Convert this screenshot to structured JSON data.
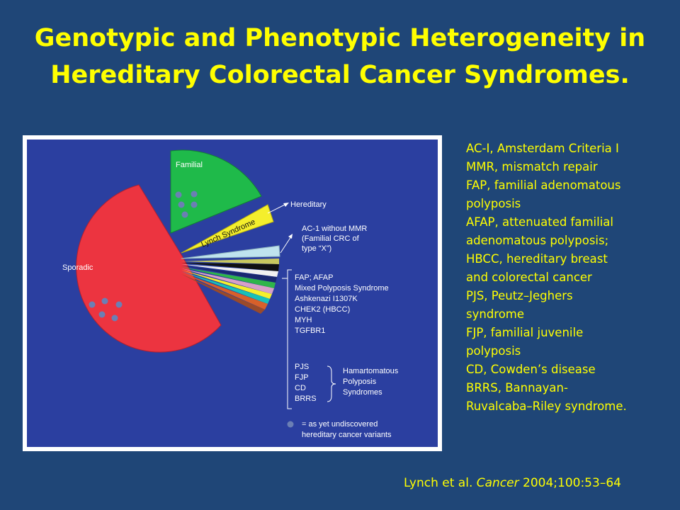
{
  "title": {
    "line1": "Genotypic and Phenotypic Heterogeneity in",
    "line2": "Hereditary Colorectal Cancer Syndromes."
  },
  "figure": {
    "slices": {
      "sporadic": "Sporadic",
      "familial": "Familial",
      "lynch": "Lynch Syndrome"
    },
    "labels": {
      "hereditary": "Hereditary",
      "ac1_line1": "AC-1 without MMR",
      "ac1_line2": "(Familial CRC of",
      "ac1_line3": "type “X”)",
      "genes": [
        "FAP; AFAP",
        "Mixed Polyposis Syndrome",
        "Ashkenazi I1307K",
        "CHEK2 (HBCC)",
        "MYH",
        "TGFBR1"
      ],
      "hamartomatous_abbrevs": [
        "PJS",
        "FJP",
        "CD",
        "BRRS"
      ],
      "hamartomatous_group": [
        "Hamartomatous",
        "Polyposis",
        "Syndromes"
      ],
      "legend_line1": "= as yet undiscovered",
      "legend_line2": "hereditary cancer variants"
    },
    "colors": {
      "background": "#2b3fa0",
      "sporadic": "#ec3440",
      "familial": "#1fba4a",
      "lynch": "#f4ef2c",
      "ac1": "#bfe3ee",
      "dots": "#6b7fb4"
    }
  },
  "abbreviations": [
    "AC-I, Amsterdam Criteria I",
    "MMR, mismatch repair",
    "FAP, familial adenomatous",
    "polyposis",
    "AFAP, attenuated familial",
    "adenomatous polyposis;",
    "HBCC, hereditary breast",
    "and colorectal cancer",
    "PJS, Peutz–Jeghers",
    "syndrome",
    "FJP, familial juvenile",
    "polyposis",
    "CD, Cowden’s disease",
    "BRRS, Bannayan-",
    "Ruvalcaba–Riley syndrome."
  ],
  "citation": {
    "authors": "Lynch et al.",
    "journal": "Cancer",
    "details": "2004;100:53–64"
  }
}
